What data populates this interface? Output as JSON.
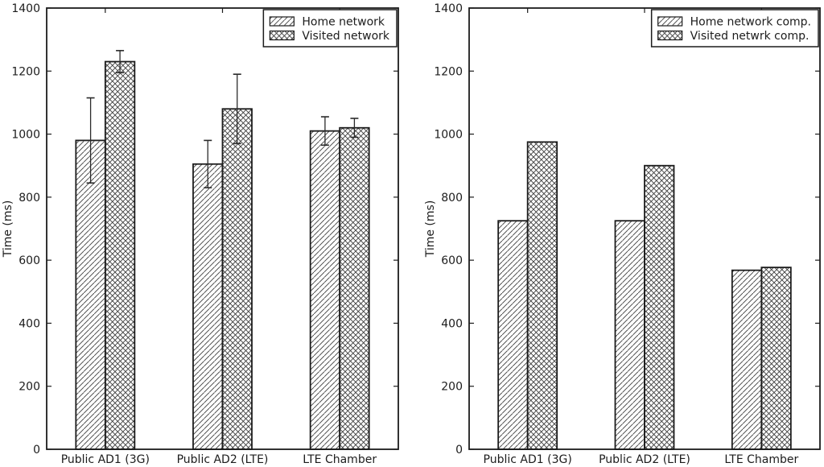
{
  "figure": {
    "background": "#ffffff",
    "ink_color": "#1c1c1c",
    "hatch_color": "#3c3c3c"
  },
  "chart_data": [
    {
      "type": "bar",
      "panel": "left",
      "title": "",
      "xlabel": "",
      "ylabel": "Time (ms)",
      "ylim": [
        0,
        1400
      ],
      "yticks": [
        0,
        200,
        400,
        600,
        800,
        1000,
        1200,
        1400
      ],
      "categories": [
        "Public AD1 (3G)",
        "Public AD2 (LTE)",
        "LTE Chamber"
      ],
      "series": [
        {
          "name": "Home network",
          "hatch": "diagonal",
          "values": [
            980,
            905,
            1010
          ],
          "errors": [
            135,
            75,
            45
          ]
        },
        {
          "name": "Visited network",
          "hatch": "cross",
          "values": [
            1230,
            1080,
            1020
          ],
          "errors": [
            35,
            110,
            30
          ]
        }
      ],
      "legend_position": "upper-right",
      "grid": false
    },
    {
      "type": "bar",
      "panel": "right",
      "title": "",
      "xlabel": "",
      "ylabel": "Time (ms)",
      "ylim": [
        0,
        1400
      ],
      "yticks": [
        0,
        200,
        400,
        600,
        800,
        1000,
        1200,
        1400
      ],
      "categories": [
        "Public AD1 (3G)",
        "Public AD2 (LTE)",
        "LTE Chamber"
      ],
      "series": [
        {
          "name": "Home network comp.",
          "hatch": "diagonal",
          "values": [
            725,
            725,
            568
          ]
        },
        {
          "name": "Visited netwrk comp.",
          "hatch": "cross",
          "values": [
            975,
            900,
            577
          ]
        }
      ],
      "legend_position": "upper-right",
      "grid": false
    }
  ]
}
